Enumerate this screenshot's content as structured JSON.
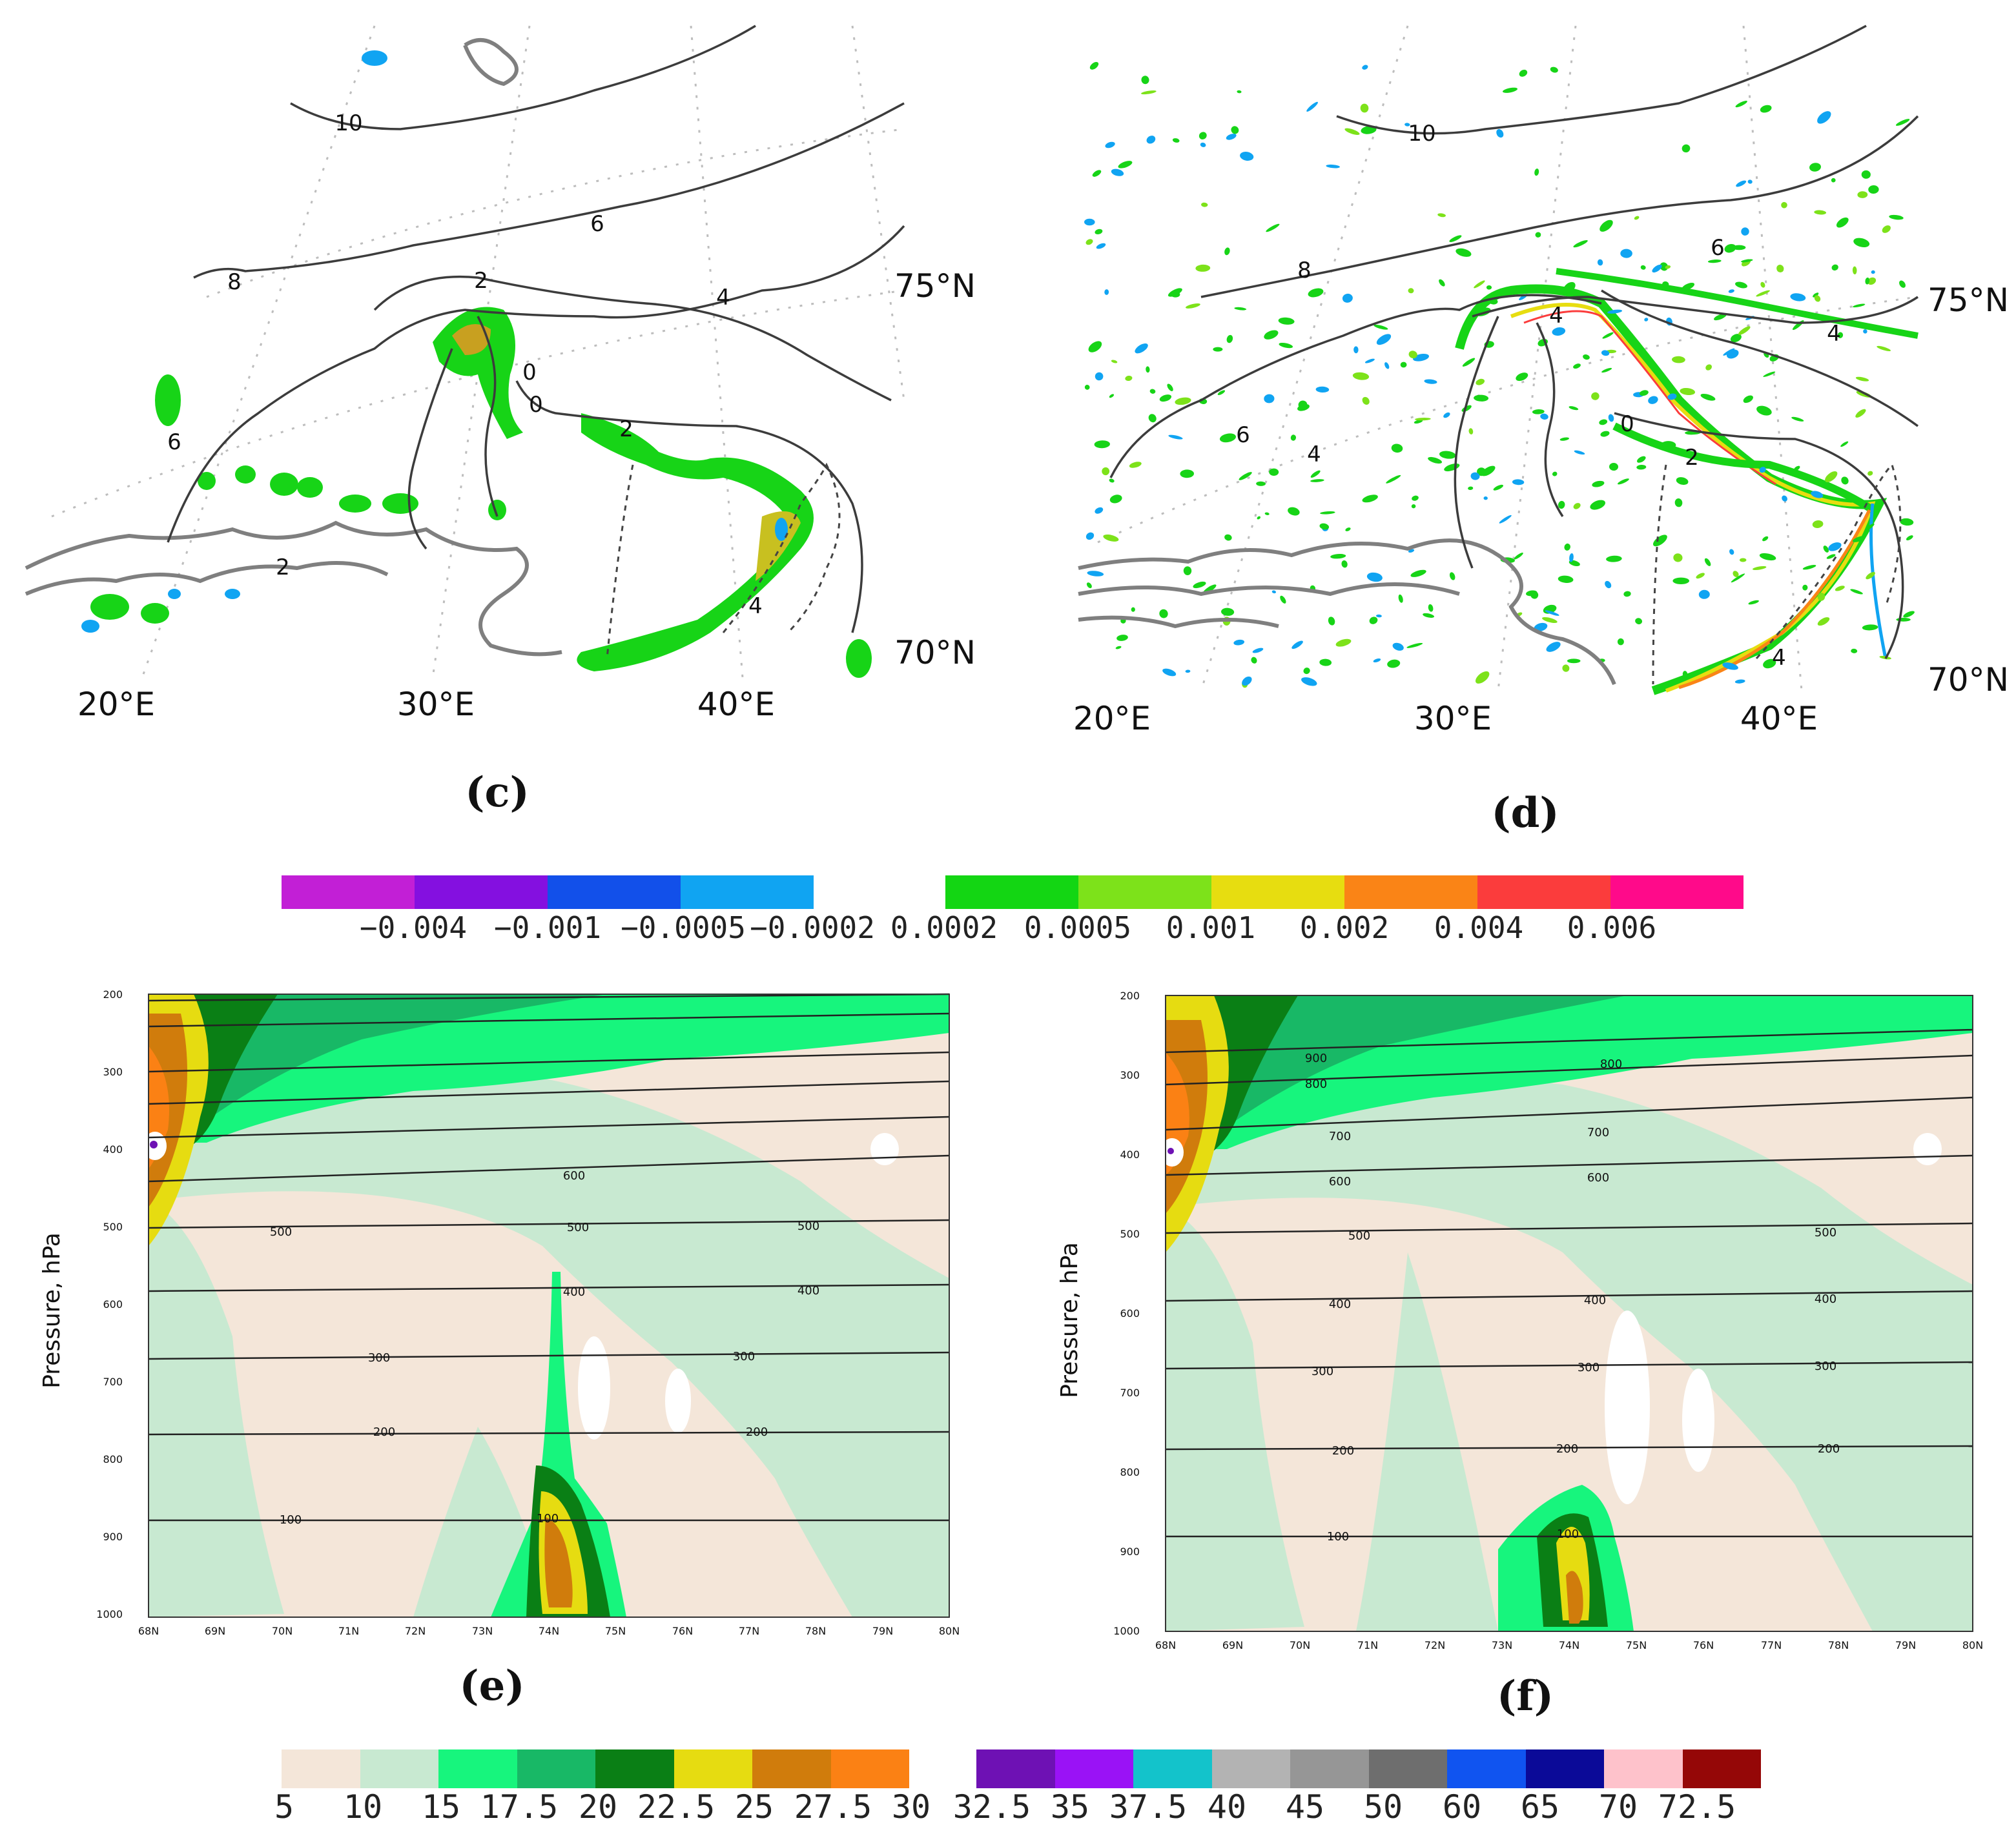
{
  "panels": {
    "c": {
      "caption": "(c)",
      "lon_labels": [
        "20°E",
        "30°E",
        "40°E"
      ],
      "lat_labels": [
        "75°N",
        "70°N"
      ],
      "contour_labels": [
        "10",
        "8",
        "6",
        "6",
        "4",
        "2",
        "0",
        "0",
        "2",
        "4",
        "2"
      ]
    },
    "d": {
      "caption": "(d)",
      "lon_labels": [
        "20°E",
        "30°E",
        "40°E"
      ],
      "lat_labels": [
        "75°N",
        "70°N"
      ],
      "contour_labels": [
        "10",
        "8",
        "6",
        "6",
        "4",
        "4",
        "0",
        "2",
        "4",
        "4"
      ]
    },
    "e": {
      "caption": "(e)",
      "ylabel": "Pressure, hPa",
      "pressure_ticks": [
        "200",
        "300",
        "400",
        "500",
        "600",
        "700",
        "800",
        "900",
        "1000"
      ],
      "lat_ticks": [
        "68N",
        "69N",
        "70N",
        "71N",
        "72N",
        "73N",
        "74N",
        "75N",
        "76N",
        "77N",
        "78N",
        "79N",
        "80N"
      ],
      "contour_labels": [
        "600",
        "500",
        "500",
        "500",
        "400",
        "400",
        "300",
        "300",
        "200",
        "200",
        "100",
        "100"
      ]
    },
    "f": {
      "caption": "(f)",
      "ylabel": "Pressure, hPa",
      "pressure_ticks": [
        "200",
        "300",
        "400",
        "500",
        "600",
        "700",
        "800",
        "900",
        "1000"
      ],
      "lat_ticks": [
        "68N",
        "69N",
        "70N",
        "71N",
        "72N",
        "73N",
        "74N",
        "75N",
        "76N",
        "77N",
        "78N",
        "79N",
        "80N"
      ],
      "contour_labels": [
        "900",
        "800",
        "800",
        "700",
        "700",
        "600",
        "600",
        "500",
        "500",
        "400",
        "400",
        "400",
        "300",
        "300",
        "300",
        "200",
        "200",
        "200",
        "100",
        "100"
      ]
    }
  },
  "colorbar_top": {
    "negative": {
      "colors": [
        "#c21fd6",
        "#8410e0",
        "#1250ea",
        "#10a4f2"
      ],
      "labels": [
        "−0.004",
        "−0.001",
        "−0.0005",
        "−0.0002"
      ]
    },
    "positive": {
      "colors": [
        "#13d613",
        "#7de21a",
        "#e7dd10",
        "#fa8416",
        "#fb3c3c",
        "#ff0a8a"
      ],
      "labels": [
        "0.0002",
        "0.0005",
        "0.001",
        "0.002",
        "0.004",
        "0.006"
      ]
    }
  },
  "colorbar_bottom": {
    "colors": [
      "#f4e6d9",
      "#c8e9d1",
      "#17f57d",
      "#18b866",
      "#0a7f15",
      "#e6dc11",
      "#d07c0c",
      "#fb8114",
      "#6e11b4",
      "#9a12f6",
      "#13c3cb",
      "#b3b3b3",
      "#969696",
      "#6e6e6e",
      "#1054f0",
      "#0b0a98",
      "#fec2cb",
      "#950707"
    ],
    "labels": [
      "5",
      "10",
      "15",
      "17.5",
      "20",
      "22.5",
      "25",
      "27.5",
      "30",
      "32.5",
      "35",
      "37.5",
      "40",
      "45",
      "50",
      "60",
      "65",
      "70",
      "72.5"
    ]
  }
}
